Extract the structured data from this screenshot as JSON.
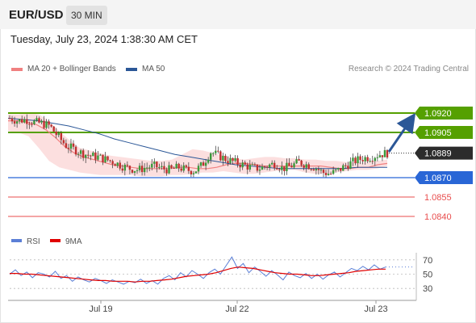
{
  "header": {
    "symbol": "EUR/USD",
    "timeframe": "30 MIN"
  },
  "timestamp": "Tuesday, July 23, 2024 1:38:30 AM CET",
  "legend": {
    "ma20_bb": {
      "label": "MA 20 + Bollinger Bands",
      "color": "#f08080"
    },
    "ma50": {
      "label": "MA 50",
      "color": "#2b5797"
    }
  },
  "credit": "Research © 2024 Trading Central",
  "rsi_legend": {
    "rsi": {
      "label": "RSI",
      "color": "#5b7fd6"
    },
    "ma9": {
      "label": "9MA",
      "color": "#e00000"
    }
  },
  "x_axis_labels": [
    "Jul 19",
    "Jul 22",
    "Jul 23"
  ],
  "chart_data": [
    {
      "type": "candlestick",
      "y_range": [
        1.0835,
        1.0935
      ],
      "current_price": "1.0889",
      "levels": [
        {
          "value": 1.092,
          "label": "1.0920",
          "role": "resistance",
          "color": "#55a000"
        },
        {
          "value": 1.0905,
          "label": "1.0905",
          "role": "resistance",
          "color": "#55a000"
        },
        {
          "value": 1.087,
          "label": "1.0870",
          "role": "pivot",
          "color": "#2966d6"
        },
        {
          "value": 1.0855,
          "label": "1.0855",
          "role": "support",
          "color": "#e84c4c"
        },
        {
          "value": 1.084,
          "label": "1.0840",
          "role": "support",
          "color": "#e84c4c"
        }
      ],
      "forecast_arrow": {
        "from": 1.089,
        "to": 1.0918,
        "color": "#2b5797"
      },
      "close_path": [
        1.0916,
        1.0914,
        1.0915,
        1.0913,
        1.0912,
        1.091,
        1.0902,
        1.0895,
        1.0892,
        1.0889,
        1.0887,
        1.0886,
        1.0884,
        1.0882,
        1.0879,
        1.0877,
        1.0876,
        1.0878,
        1.0879,
        1.0877,
        1.0876,
        1.0878,
        1.0876,
        1.0875,
        1.088,
        1.089,
        1.0887,
        1.0884,
        1.0882,
        1.088,
        1.0878,
        1.0877,
        1.0879,
        1.0881,
        1.0877,
        1.0879,
        1.0882,
        1.088,
        1.0878,
        1.0874,
        1.0873,
        1.0876,
        1.088,
        1.0883,
        1.0885,
        1.0886,
        1.0888,
        1.0889
      ],
      "ma20_path": [
        1.0914,
        1.0914,
        1.0913,
        1.0911,
        1.0907,
        1.0901,
        1.0894,
        1.0889,
        1.0886,
        1.0884,
        1.0882,
        1.088,
        1.0879,
        1.0878,
        1.0877,
        1.0877,
        1.0877,
        1.0877,
        1.0878,
        1.0878,
        1.0877,
        1.0877,
        1.0878,
        1.088,
        1.0881,
        1.0881,
        1.088,
        1.0879,
        1.0879,
        1.0879,
        1.0879,
        1.0879,
        1.0879,
        1.0879,
        1.0878,
        1.0877,
        1.0877,
        1.0878,
        1.0878,
        1.088,
        1.0881
      ],
      "bb_upper": [
        1.0919,
        1.0919,
        1.092,
        1.0919,
        1.0914,
        1.0906,
        1.0899,
        1.0893,
        1.0891,
        1.0889,
        1.0887,
        1.0886,
        1.0885,
        1.0884,
        1.0883,
        1.0883,
        1.0884,
        1.0888,
        1.0892,
        1.0891,
        1.0889,
        1.0887,
        1.0885,
        1.0884,
        1.0885,
        1.0886,
        1.0886,
        1.0885,
        1.0885,
        1.0884,
        1.0884,
        1.0883,
        1.0883,
        1.0882,
        1.0882,
        1.0882,
        1.0883,
        1.0884
      ],
      "bb_lower": [
        1.0906,
        1.0905,
        1.0902,
        1.0893,
        1.0883,
        1.0878,
        1.0876,
        1.0874,
        1.0873,
        1.0872,
        1.0872,
        1.0872,
        1.0872,
        1.0871,
        1.0871,
        1.0871,
        1.0872,
        1.0872,
        1.0873,
        1.0874,
        1.0874,
        1.0875,
        1.0874,
        1.0873,
        1.0873,
        1.0874,
        1.0875,
        1.0876,
        1.0876,
        1.0874,
        1.0873,
        1.0873,
        1.0874,
        1.0875,
        1.0876,
        1.0876,
        1.0877,
        1.0879
      ],
      "ma50_path": [
        1.0916,
        1.0915,
        1.0914,
        1.0912,
        1.091,
        1.0907,
        1.0904,
        1.09,
        1.0897,
        1.0894,
        1.0891,
        1.0888,
        1.0886,
        1.0884,
        1.0882,
        1.088,
        1.0879,
        1.0878,
        1.0877,
        1.0877,
        1.0877,
        1.0877,
        1.0877,
        1.0878,
        1.0878,
        1.0878
      ]
    },
    {
      "type": "line",
      "name": "RSI",
      "y_range": [
        20,
        80
      ],
      "y_ticks": [
        "70",
        "50",
        "30"
      ],
      "reference_lines": [
        70,
        50,
        30
      ],
      "series": [
        {
          "name": "RSI",
          "color": "#5b7fd6",
          "values": [
            50,
            56,
            48,
            53,
            45,
            52,
            50,
            46,
            54,
            44,
            48,
            40,
            46,
            42,
            39,
            44,
            41,
            37,
            42,
            39,
            36,
            40,
            38,
            43,
            37,
            41,
            36,
            44,
            48,
            42,
            52,
            46,
            55,
            50,
            44,
            52,
            57,
            50,
            62,
            74,
            58,
            65,
            52,
            60,
            54,
            47,
            55,
            49,
            42,
            53,
            48,
            45,
            51,
            44,
            50,
            43,
            49,
            53,
            46,
            52,
            58,
            55,
            61,
            56,
            63,
            57,
            60
          ]
        },
        {
          "name": "9MA",
          "color": "#e00000",
          "values": [
            51,
            51,
            50,
            50,
            49,
            48,
            47,
            46,
            45,
            44,
            43,
            42,
            41,
            41,
            40,
            40,
            40,
            39,
            40,
            40,
            41,
            42,
            43,
            45,
            47,
            48,
            49,
            50,
            52,
            55,
            58,
            60,
            59,
            58,
            56,
            54,
            52,
            51,
            50,
            50,
            49,
            48,
            48,
            49,
            50,
            51,
            52,
            54,
            55,
            56,
            57,
            57
          ]
        }
      ]
    }
  ]
}
